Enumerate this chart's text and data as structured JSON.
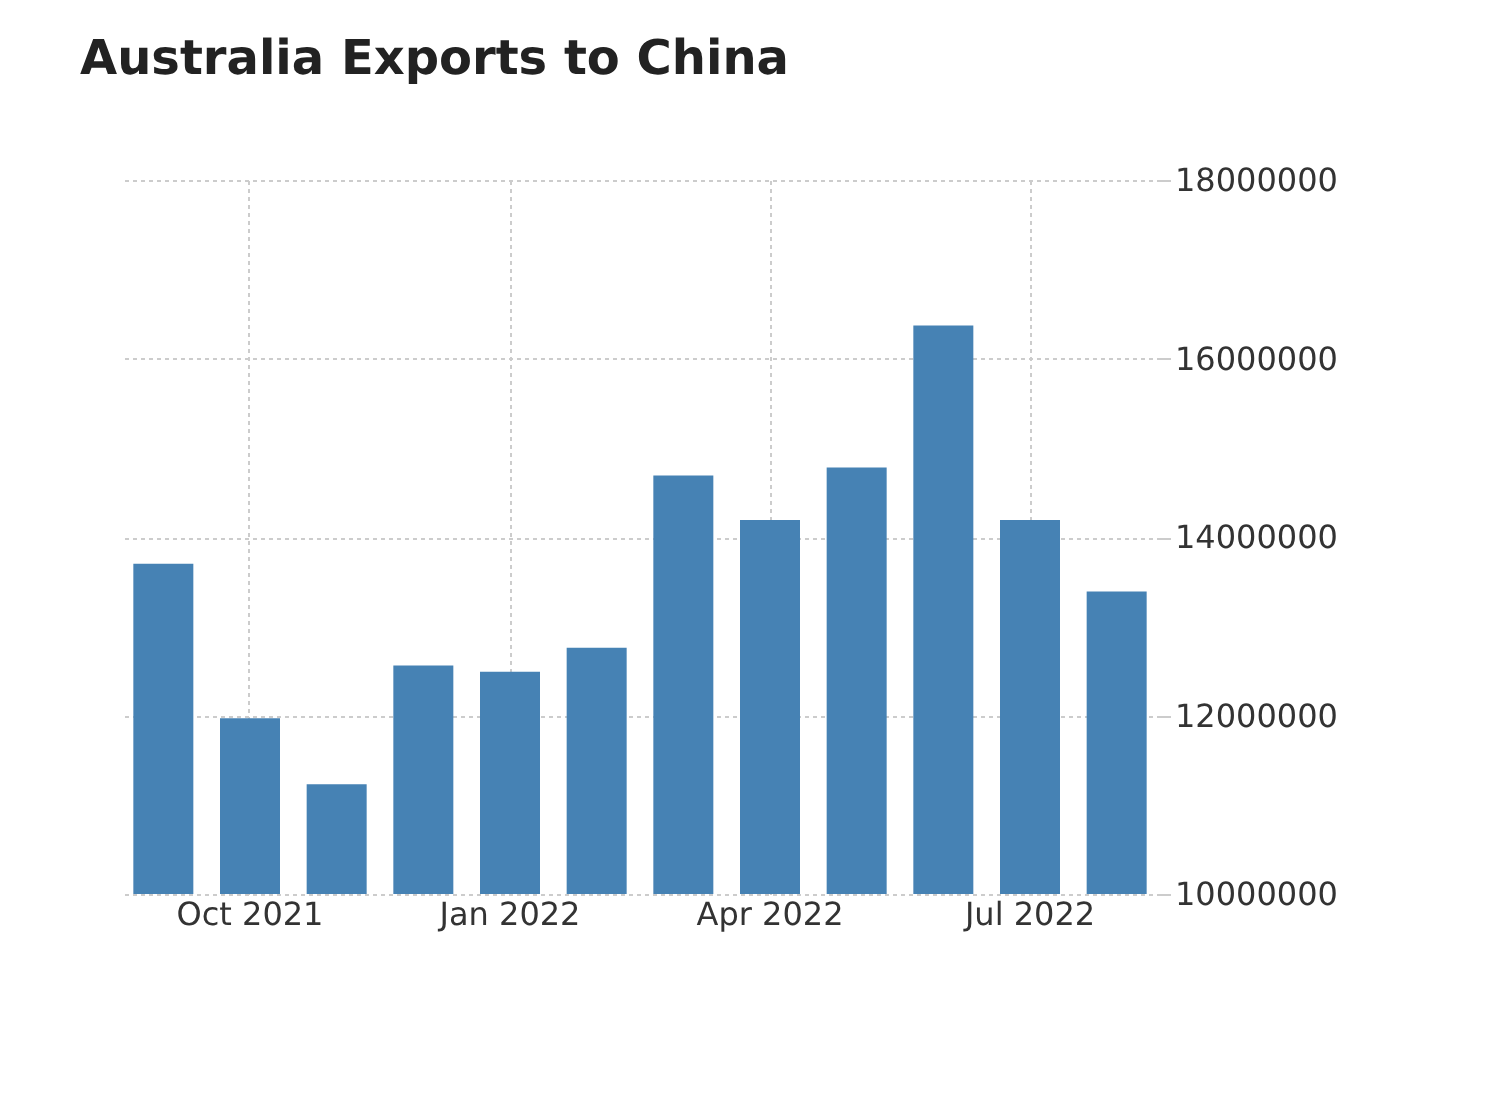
{
  "chart_data": {
    "type": "bar",
    "title": "Australia Exports to China",
    "categories": [
      null,
      "Oct 2021",
      null,
      null,
      "Jan 2022",
      null,
      null,
      "Apr 2022",
      null,
      null,
      "Jul 2022",
      null
    ],
    "values": [
      13700000,
      11970000,
      11230000,
      12560000,
      12490000,
      12760000,
      14690000,
      14190000,
      14780000,
      16370000,
      14190000,
      13390000
    ],
    "color": "#4682b4",
    "ylim": [
      10000000,
      18000000
    ],
    "yticks": [
      10000000,
      12000000,
      14000000,
      16000000,
      18000000
    ],
    "grid": true
  }
}
